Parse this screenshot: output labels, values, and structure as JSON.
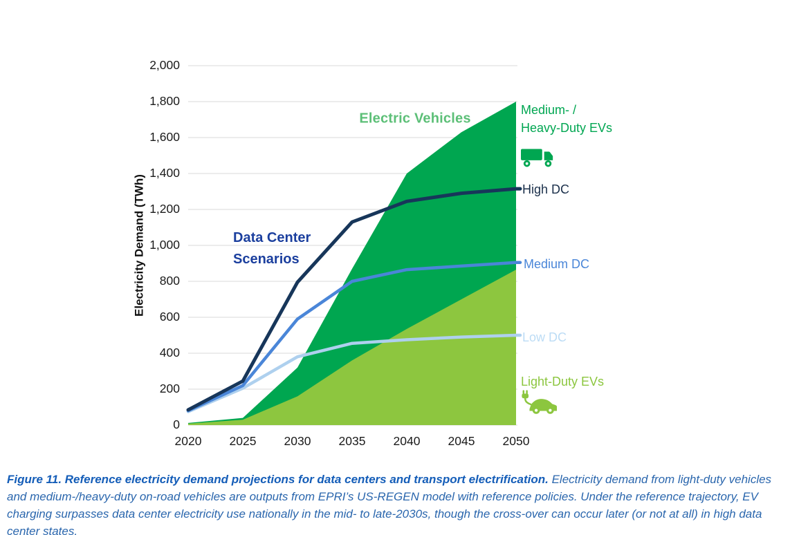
{
  "figure": {
    "caption_bold": "Figure 11. Reference electricity demand projections for data centers and transport electrification.",
    "caption_rest": "Electricity demand from light-duty vehicles and medium-/heavy-duty on-road vehicles are outputs from EPRI’s US-REGEN model with reference policies. Under the reference trajectory, EV charging surpasses data center electricity use nationally in the mid- to late-2030s, though the cross-over can occur later (or not at all) in high data center states."
  },
  "labels": {
    "electric_vehicles": "Electric Vehicles",
    "data_center_line1": "Data Center",
    "data_center_line2": "Scenarios",
    "mhd_line1": "Medium- /",
    "mhd_line2": "Heavy-Duty EVs",
    "high_dc": "High DC",
    "medium_dc": "Medium DC",
    "low_dc": "Low DC",
    "light_duty_evs": "Light-Duty EVs",
    "truck_icon": "medium-heavy-duty-ev-truck-icon",
    "car_icon": "light-duty-ev-car-plug-icon"
  },
  "colors": {
    "light_green_area": "#8dc63f",
    "dark_green_area": "#00a650",
    "high_dc_line": "#17365a",
    "medium_dc_line": "#4a86d8",
    "low_dc_line": "#aed0ee",
    "electric_vehicles_text": "#5cbf77",
    "data_center_text": "#1b3f9e",
    "high_dc_text": "#1a2f4a",
    "medium_dc_text": "#4a86d8",
    "low_dc_text": "#bcdcf5",
    "light_duty_text": "#8cc63f",
    "mhd_text": "#00a651",
    "caption_text": "#2a66ad",
    "gridline": "#d9d9d9"
  },
  "chart_data": {
    "type": "area",
    "title": "",
    "ylabel": "Electricity Demand (TWh)",
    "xlabel": "",
    "ylim": [
      0,
      2000
    ],
    "y_tick_step": 200,
    "y_tick_labels": [
      "0",
      "200",
      "400",
      "600",
      "800",
      "1,000",
      "1,200",
      "1,400",
      "1,600",
      "1,800",
      "2,000"
    ],
    "x": [
      2020,
      2025,
      2030,
      2035,
      2040,
      2045,
      2050
    ],
    "x_tick_labels": [
      "2020",
      "2025",
      "2030",
      "2035",
      "2040",
      "2045",
      "2050"
    ],
    "grid": true,
    "legend_position": "right-outside",
    "areas": [
      {
        "name": "Light-Duty EVs",
        "color": "#8dc63f",
        "values": [
          8,
          30,
          160,
          360,
          535,
          700,
          865
        ]
      },
      {
        "name": "Medium-/Heavy-Duty EVs",
        "color": "#00a650",
        "stacked_on": "Light-Duty EVs",
        "values": [
          4,
          10,
          160,
          510,
          865,
          930,
          935
        ],
        "cumulative_top": [
          12,
          40,
          320,
          870,
          1400,
          1630,
          1800
        ]
      }
    ],
    "lines": [
      {
        "name": "Low DC",
        "color": "#aed0ee",
        "values": [
          75,
          205,
          380,
          455,
          475,
          490,
          500
        ]
      },
      {
        "name": "Medium DC",
        "color": "#4a86d8",
        "values": [
          80,
          220,
          590,
          800,
          865,
          885,
          905
        ]
      },
      {
        "name": "High DC",
        "color": "#17365a",
        "values": [
          85,
          245,
          795,
          1130,
          1245,
          1290,
          1315
        ]
      }
    ],
    "annotations": [
      {
        "text": "Electric Vehicles",
        "color": "#5cbf77",
        "near": "above EV area, x~2040, y~1720 TWh"
      },
      {
        "text": "Data Center\nScenarios",
        "color": "#1b3f9e",
        "near": "left of High DC steep segment, x~2027, y~1000 TWh"
      }
    ]
  }
}
